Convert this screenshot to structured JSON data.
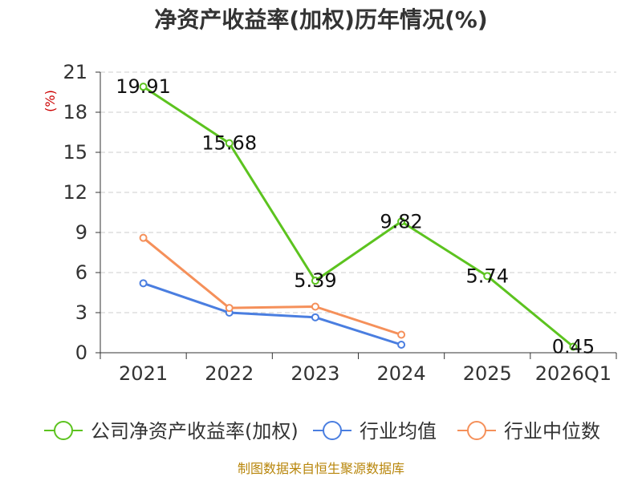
{
  "chart_data": {
    "type": "line",
    "title": "净资产收益率(加权)历年情况(%)",
    "ylabel": "(%)",
    "xlabel": "",
    "categories": [
      "2021",
      "2022",
      "2023",
      "2024",
      "2025",
      "2026Q1"
    ],
    "ylim": [
      0,
      21
    ],
    "yticks": [
      0,
      3,
      6,
      9,
      12,
      15,
      18,
      21
    ],
    "grid": true,
    "legend_position": "bottom",
    "series": [
      {
        "name": "公司净资产收益率(加权)",
        "color": "#5cc31f",
        "show_labels": true,
        "values": [
          19.91,
          15.68,
          5.39,
          9.82,
          5.74,
          0.45
        ],
        "labels": [
          "19.91",
          "15.68",
          "5.39",
          "9.82",
          "5.74",
          "0.45"
        ]
      },
      {
        "name": "行业均值",
        "color": "#4a7ee0",
        "show_labels": false,
        "values": [
          5.2,
          3.0,
          2.65,
          0.6,
          null,
          null
        ]
      },
      {
        "name": "行业中位数",
        "color": "#f5905a",
        "show_labels": false,
        "values": [
          8.6,
          3.35,
          3.45,
          1.35,
          null,
          null
        ]
      }
    ]
  },
  "footer": {
    "source": "制图数据来自恒生聚源数据库"
  }
}
